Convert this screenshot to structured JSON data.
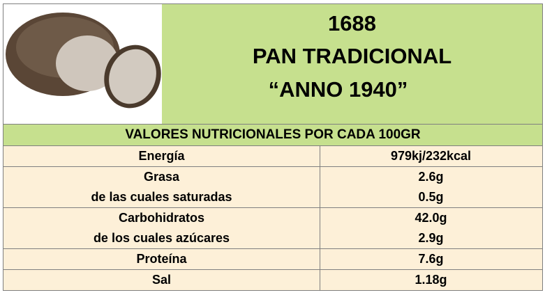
{
  "header": {
    "code": "1688",
    "name": "PAN TRADICIONAL",
    "subtitle": "“ANNO 1940”"
  },
  "table": {
    "heading": "VALORES NUTRICIONALES POR CADA 100GR",
    "rows": [
      {
        "labels": [
          "Energía"
        ],
        "values": [
          "979kj/232kcal"
        ]
      },
      {
        "labels": [
          "Grasa",
          "de las cuales saturadas"
        ],
        "values": [
          "2.6g",
          "0.5g"
        ]
      },
      {
        "labels": [
          "Carbohidratos",
          "de los cuales azúcares"
        ],
        "values": [
          "42.0g",
          "2.9g"
        ]
      },
      {
        "labels": [
          "Proteína"
        ],
        "values": [
          "7.6g"
        ]
      },
      {
        "labels": [
          "Sal"
        ],
        "values": [
          "1.18g"
        ]
      }
    ]
  }
}
